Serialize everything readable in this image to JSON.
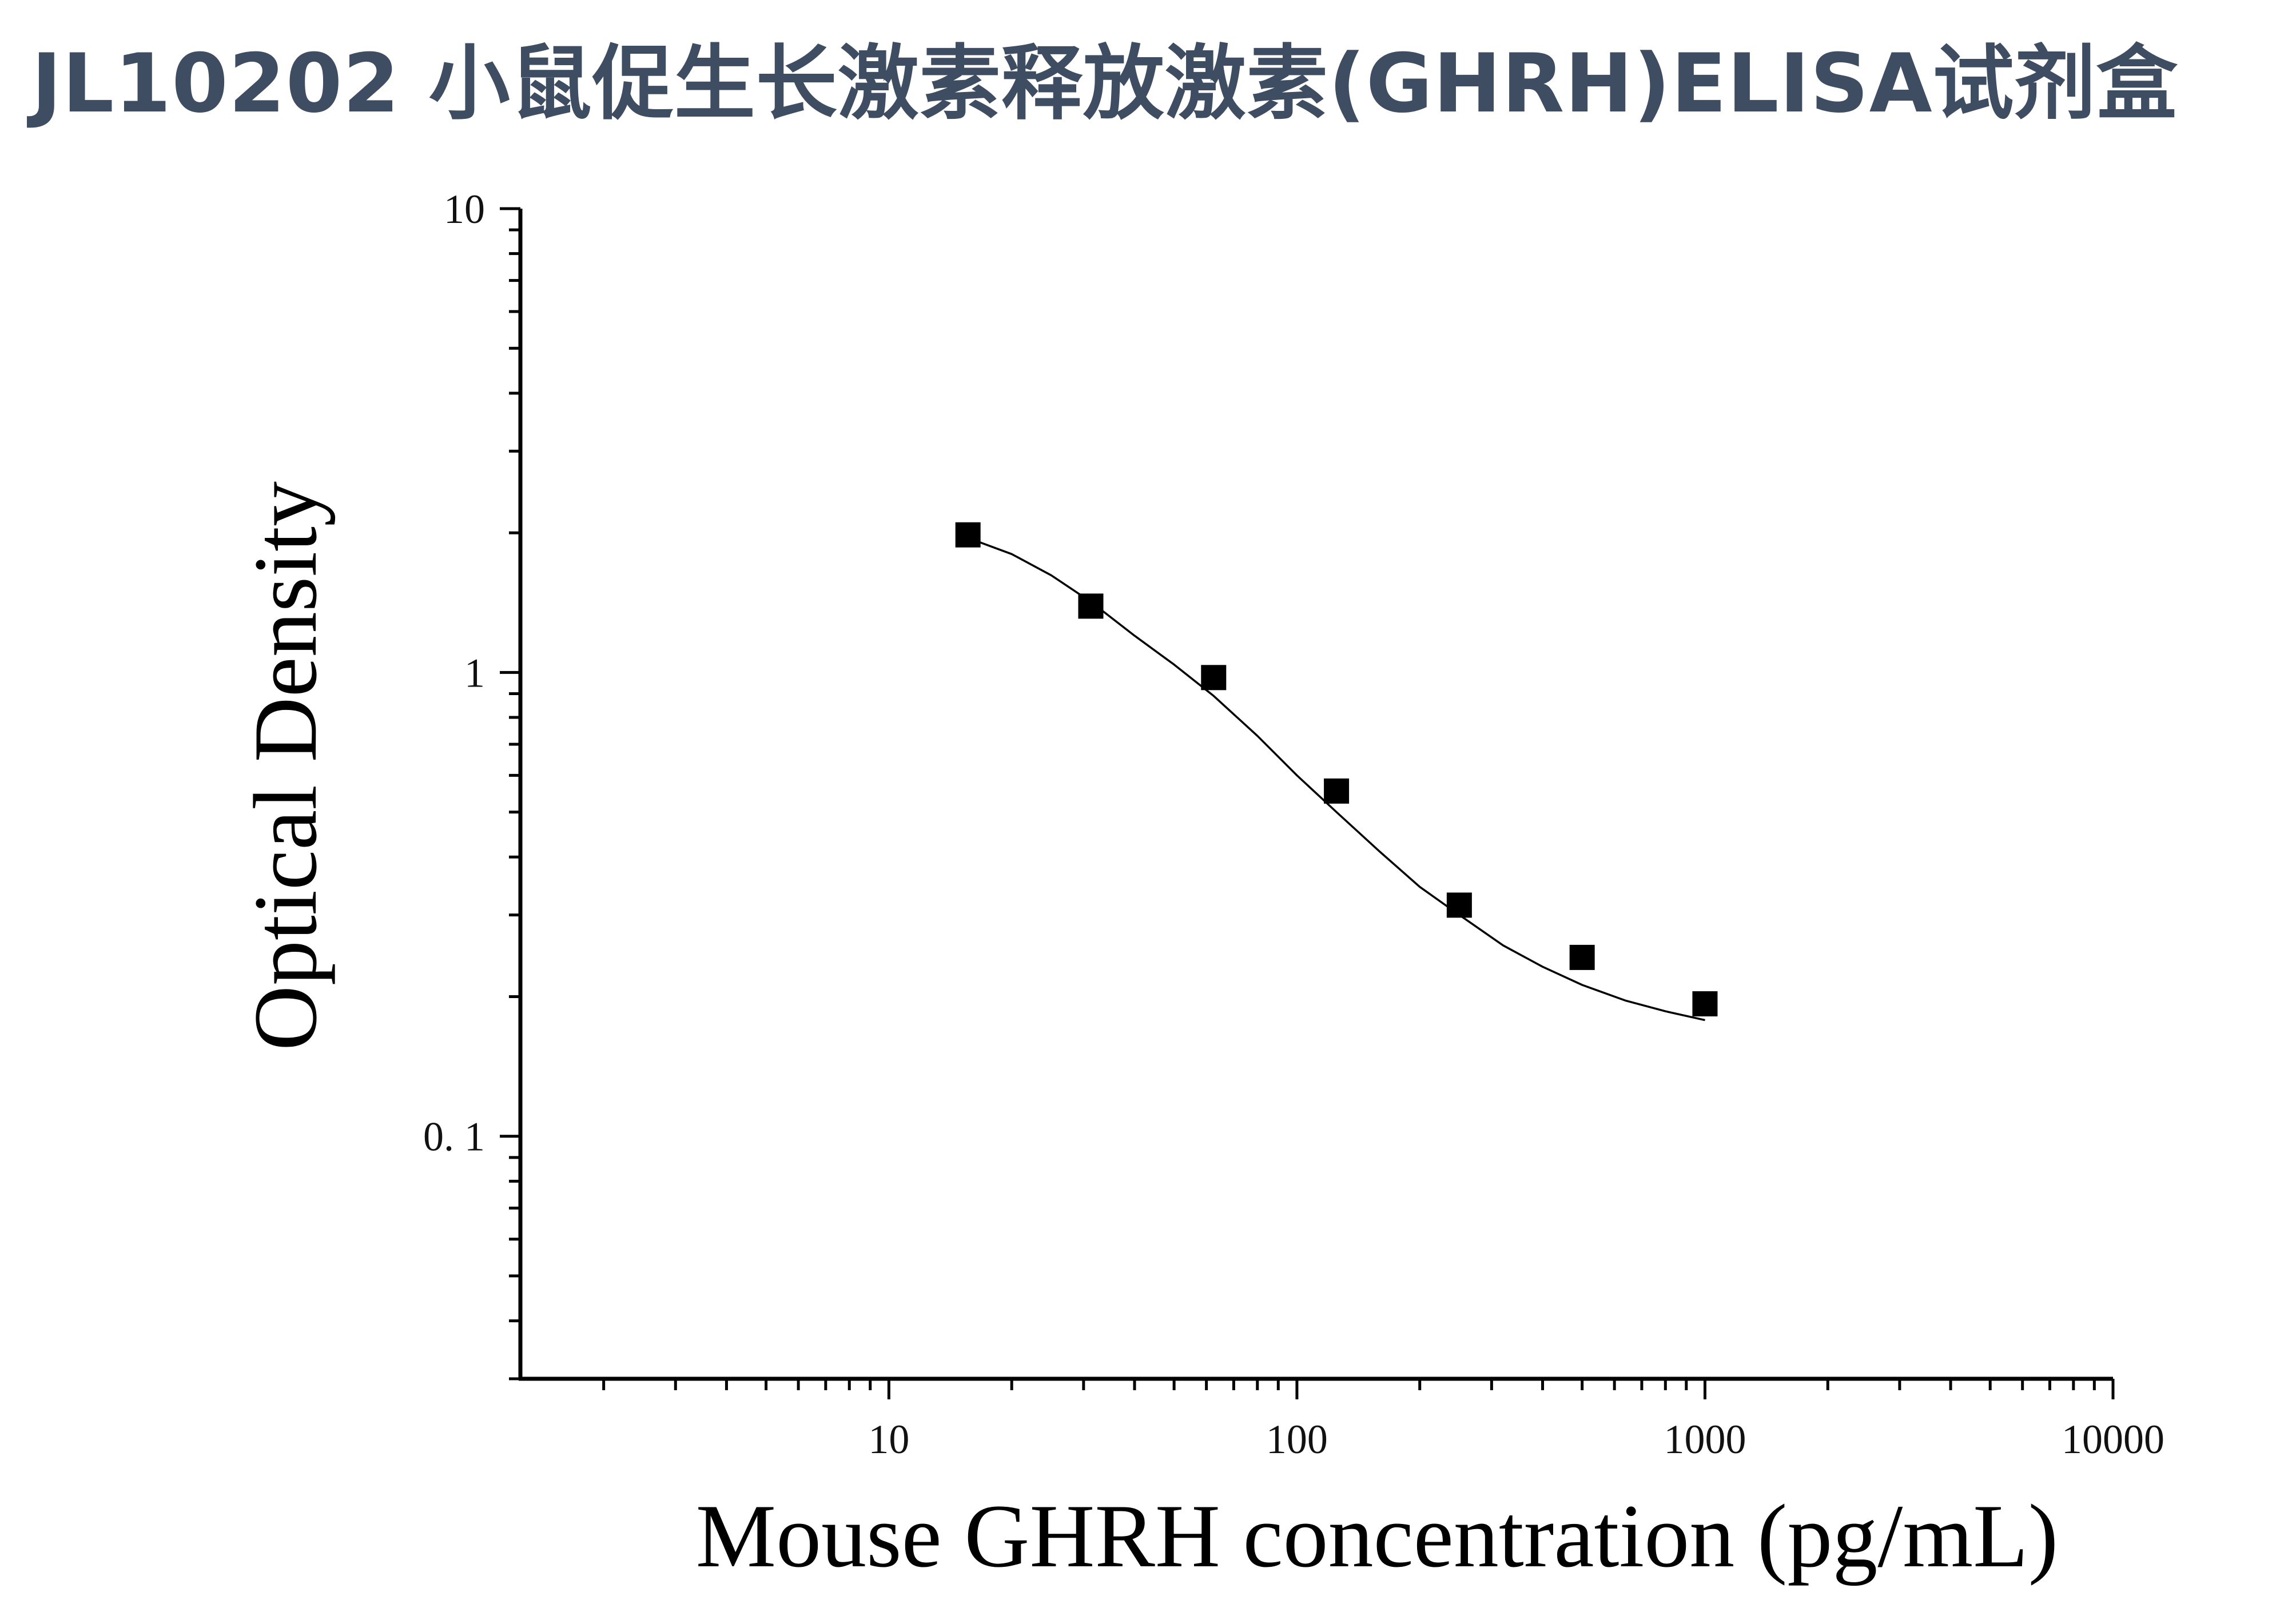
{
  "title": "JL10202 小鼠促生长激素释放激素(GHRH)ELISA试剂盒",
  "chart_data": {
    "type": "scatter",
    "x_scale": "log",
    "y_scale": "log",
    "xlabel": "Mouse GHRH concentration (pg/mL)",
    "ylabel": "Optical Density",
    "xlim": [
      1.25,
      10000
    ],
    "ylim": [
      0.03,
      10
    ],
    "x_ticks": [
      {
        "value": 10,
        "label": "10"
      },
      {
        "value": 100,
        "label": "100"
      },
      {
        "value": 1000,
        "label": "1000"
      },
      {
        "value": 10000,
        "label": "10000"
      }
    ],
    "y_ticks": [
      {
        "value": 0.1,
        "label": "0. 1"
      },
      {
        "value": 1,
        "label": "1"
      },
      {
        "value": 10,
        "label": "10"
      }
    ],
    "grid": false,
    "legend": "none",
    "series": [
      {
        "marker": "square",
        "color": "#000000",
        "x": [
          15.625,
          31.25,
          62.5,
          125,
          250,
          500,
          1000
        ],
        "y": [
          1.98,
          1.39,
          0.975,
          0.555,
          0.315,
          0.243,
          0.193
        ]
      }
    ],
    "fit_curve": {
      "color": "#000000",
      "x": [
        15.625,
        20,
        25,
        31.25,
        40,
        50,
        62.5,
        80,
        100,
        125,
        160,
        200,
        250,
        320,
        400,
        500,
        640,
        800,
        1000
      ],
      "y": [
        1.95,
        1.8,
        1.62,
        1.42,
        1.2,
        1.04,
        0.89,
        0.73,
        0.6,
        0.5,
        0.41,
        0.345,
        0.3,
        0.258,
        0.232,
        0.212,
        0.196,
        0.186,
        0.178
      ]
    }
  }
}
